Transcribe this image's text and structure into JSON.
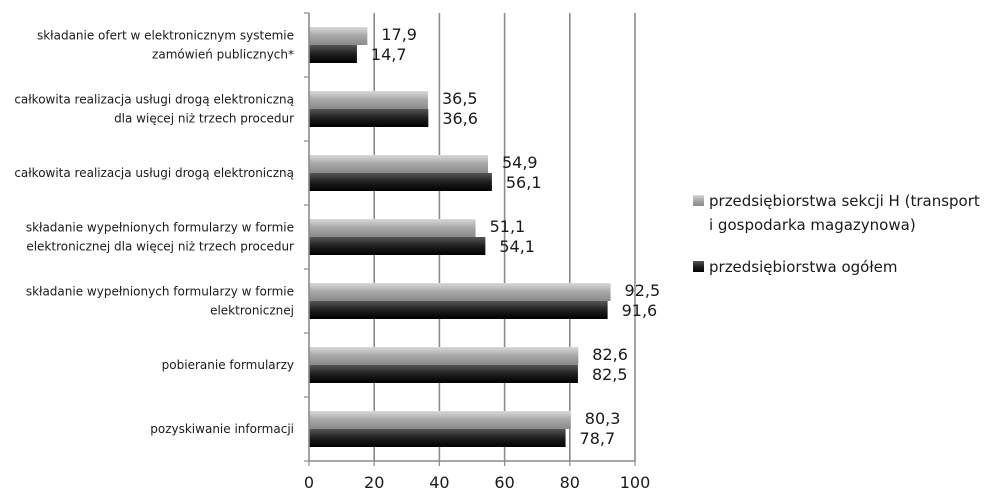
{
  "chart_data": {
    "type": "bar",
    "orientation": "horizontal",
    "categories": [
      [
        "składanie ofert w elektronicznym systemie",
        "zamówień publicznych*"
      ],
      [
        "całkowita realizacja usługi drogą elektroniczną",
        "dla więcej niż trzech procedur"
      ],
      [
        "całkowita realizacja usługi drogą elektroniczną"
      ],
      [
        "składanie wypełnionych formularzy w formie",
        "elektronicznej dla więcej niż trzech procedur"
      ],
      [
        "składanie wypełnionych formularzy w formie",
        "elektronicznej"
      ],
      [
        "pobieranie formularzy"
      ],
      [
        "pozyskiwanie informacji"
      ]
    ],
    "series": [
      {
        "name": [
          "przedsiębiorstwa sekcji H (transport",
          "i gospodarka magazynowa)"
        ],
        "color": "#a6a6a6",
        "values": [
          17.9,
          36.5,
          54.9,
          51.1,
          92.5,
          82.6,
          80.3
        ],
        "labels": [
          "17,9",
          "36,5",
          "54,9",
          "51,1",
          "92,5",
          "82,6",
          "80,3"
        ]
      },
      {
        "name": [
          "przedsiębiorstwa ogółem"
        ],
        "color": "#1f1f1f",
        "values": [
          14.7,
          36.6,
          56.1,
          54.1,
          91.6,
          82.5,
          78.7
        ],
        "labels": [
          "14,7",
          "36,6",
          "56,1",
          "54,1",
          "91,6",
          "82,5",
          "78,7"
        ]
      }
    ],
    "xlim": [
      0,
      100
    ],
    "xticks": [
      0,
      20,
      40,
      60,
      80,
      100
    ],
    "grid": "vertical",
    "legend": "right"
  }
}
